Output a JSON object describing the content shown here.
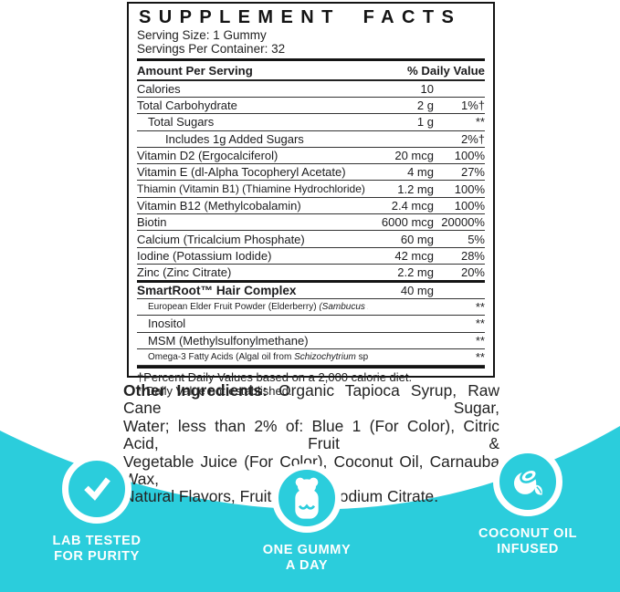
{
  "colors": {
    "teal": "#2bcddc",
    "ink": "#1c1c1e",
    "paper": "#ffffff"
  },
  "panel": {
    "title": "SUPPLEMENT FACTS",
    "serving_size": "Serving Size: 1 Gummy",
    "servings_per_container": "Servings Per Container: 32",
    "col_left": "Amount Per Serving",
    "col_right": "% Daily Value",
    "rows": [
      {
        "parts": [
          {
            "t": "Calories"
          }
        ],
        "amount": "10",
        "dv": "",
        "indent": 0
      },
      {
        "parts": [
          {
            "t": "Total Carbohydrate"
          }
        ],
        "amount": "2 g",
        "dv": "1%†",
        "indent": 0
      },
      {
        "parts": [
          {
            "t": "Total Sugars"
          }
        ],
        "amount": "1 g",
        "dv": "**",
        "indent": 1
      },
      {
        "parts": [
          {
            "t": "Includes 1g Added Sugars"
          }
        ],
        "amount": "",
        "dv": "2%†",
        "indent": 2
      },
      {
        "parts": [
          {
            "t": "Vitamin D2 (Ergocalciferol)"
          }
        ],
        "amount": "20 mcg",
        "dv": "100%",
        "indent": 0
      },
      {
        "parts": [
          {
            "t": "Vitamin E (dl-Alpha Tocopheryl Acetate)"
          }
        ],
        "amount": "4 mg",
        "dv": "27%",
        "indent": 0
      },
      {
        "parts": [
          {
            "t": "Thiamin (Vitamin B1) (Thiamine Hydrochloride)"
          }
        ],
        "amount": "1.2 mg",
        "dv": "100%",
        "indent": 0
      },
      {
        "parts": [
          {
            "t": "Vitamin B12 (Methylcobalamin)"
          }
        ],
        "amount": "2.4 mcg",
        "dv": "100%",
        "indent": 0
      },
      {
        "parts": [
          {
            "t": "Biotin"
          }
        ],
        "amount": "6000 mcg",
        "dv": "20000%",
        "indent": 0
      },
      {
        "parts": [
          {
            "t": "Calcium (Tricalcium Phosphate)"
          }
        ],
        "amount": "60 mg",
        "dv": "5%",
        "indent": 0
      },
      {
        "parts": [
          {
            "t": "Iodine (Potassium Iodide)"
          }
        ],
        "amount": "42 mcg",
        "dv": "28%",
        "indent": 0
      },
      {
        "parts": [
          {
            "t": "Zinc (Zinc Citrate)"
          }
        ],
        "amount": "2.2 mg",
        "dv": "20%",
        "indent": 0
      },
      {
        "parts": [
          {
            "t": "SmartRoot™ Hair Complex"
          }
        ],
        "amount": "40 mg",
        "dv": "",
        "indent": 0,
        "bold": true,
        "thick_top": true
      },
      {
        "parts": [
          {
            "t": "European Elder Fruit Powder (Elderberry) "
          },
          {
            "t": "(Sambucus nigra L.)",
            "i": true
          }
        ],
        "amount": "",
        "dv": "**",
        "indent": 1
      },
      {
        "parts": [
          {
            "t": "Inositol"
          }
        ],
        "amount": "",
        "dv": "**",
        "indent": 1
      },
      {
        "parts": [
          {
            "t": "MSM (Methylsulfonylmethane)"
          }
        ],
        "amount": "",
        "dv": "**",
        "indent": 1
      },
      {
        "parts": [
          {
            "t": "Omega-3 Fatty Acids (Algal oil from "
          },
          {
            "t": "Schizochytrium",
            "i": true
          },
          {
            "t": " sp.)"
          }
        ],
        "amount": "",
        "dv": "**",
        "indent": 1
      }
    ],
    "footnotes": [
      "†Percent Daily Values based on a 2,000 calorie diet.",
      "**Daily Value not established."
    ]
  },
  "other_ingredients": {
    "label": "Other Ingredients:",
    "lines": [
      " Organic Tapioca Syrup, Raw Cane Sugar,",
      "Water; less than 2% of: Blue 1 (For Color), Citric Acid, Fruit &",
      "Vegetable Juice (For Color), Coconut Oil, Carnauba Wax,",
      "Natural Flavors, Fruit Pectin, Sodium Citrate."
    ]
  },
  "badges": [
    {
      "icon": "check-icon",
      "lines": [
        "LAB TESTED",
        "FOR PURITY"
      ]
    },
    {
      "icon": "gummy-bear-icon",
      "lines": [
        "ONE GUMMY",
        "A DAY"
      ]
    },
    {
      "icon": "coconut-icon",
      "lines": [
        "COCONUT OIL",
        "INFUSED"
      ]
    }
  ]
}
